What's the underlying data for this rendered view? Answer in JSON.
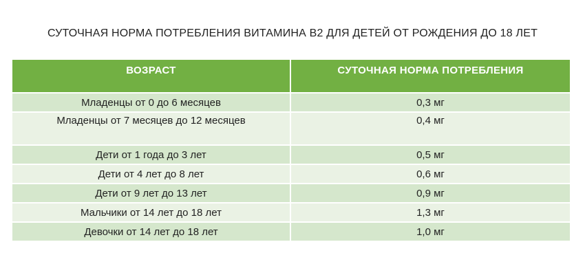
{
  "title": "СУТОЧНАЯ НОРМА ПОТРЕБЛЕНИЯ ВИТАМИНА B2 ДЛЯ ДЕТЕЙ ОТ РОЖДЕНИЯ ДО 18 ЛЕТ",
  "colors": {
    "header_bg": "#72b043",
    "row_dark": "#d5e7cc",
    "row_light": "#eaf2e4"
  },
  "table": {
    "headers": [
      "ВОЗРАСТ",
      "СУТОЧНАЯ НОРМА ПОТРЕБЛЕНИЯ"
    ],
    "rows": [
      [
        "Младенцы от 0 до 6 месяцев",
        "0,3 мг"
      ],
      [
        "Младенцы от 7 месяцев до 12 месяцев",
        "0,4 мг"
      ],
      [
        "Дети от 1 года до 3 лет",
        "0,5 мг"
      ],
      [
        "Дети от 4 лет до 8 лет",
        "0,6 мг"
      ],
      [
        "Дети от 9 лет до 13 лет",
        "0,9 мг"
      ],
      [
        "Мальчики от 14 лет до 18 лет",
        "1,3 мг"
      ],
      [
        "Девочки от 14 лет до 18 лет",
        "1,0 мг"
      ]
    ]
  }
}
